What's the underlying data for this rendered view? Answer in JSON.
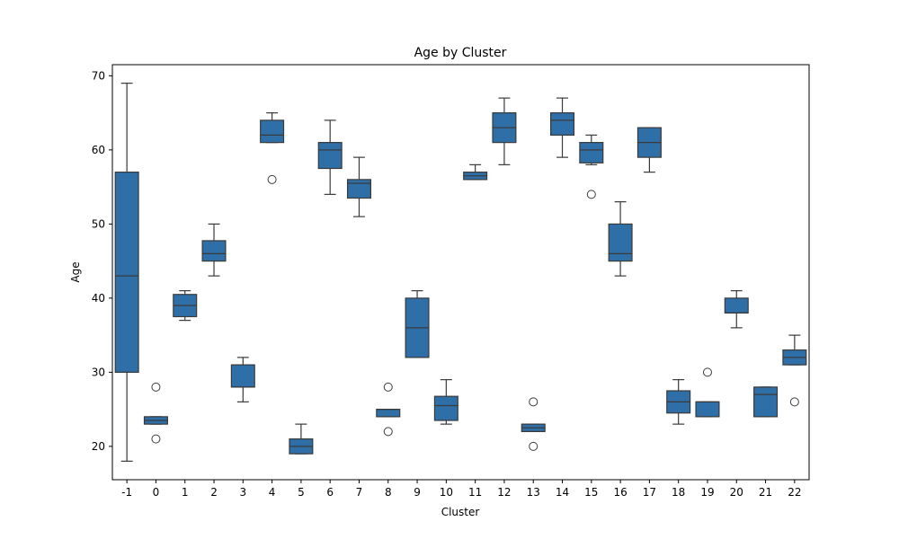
{
  "chart_data": {
    "type": "box",
    "title": "Age by Cluster",
    "xlabel": "Cluster",
    "ylabel": "Age",
    "ylim": [
      15.5,
      71.5
    ],
    "yticks": [
      20,
      30,
      40,
      50,
      60,
      70
    ],
    "grid": false,
    "box_color": "#2f6fa7",
    "line_color": "#3a3a3a",
    "categories": [
      "-1",
      "0",
      "1",
      "2",
      "3",
      "4",
      "5",
      "6",
      "7",
      "8",
      "9",
      "10",
      "11",
      "12",
      "13",
      "14",
      "15",
      "16",
      "17",
      "18",
      "19",
      "20",
      "21",
      "22"
    ],
    "boxes": [
      {
        "whislo": 18,
        "q1": 30,
        "med": 43,
        "q3": 57,
        "whishi": 69,
        "fliers": []
      },
      {
        "whislo": 23,
        "q1": 23,
        "med": 23.5,
        "q3": 24,
        "whishi": 24,
        "fliers": [
          28,
          21
        ]
      },
      {
        "whislo": 37,
        "q1": 37.5,
        "med": 39,
        "q3": 40.5,
        "whishi": 41,
        "fliers": []
      },
      {
        "whislo": 43,
        "q1": 45,
        "med": 46,
        "q3": 47.75,
        "whishi": 50,
        "fliers": []
      },
      {
        "whislo": 26,
        "q1": 28,
        "med": 28,
        "q3": 31,
        "whishi": 32,
        "fliers": []
      },
      {
        "whislo": 61,
        "q1": 61,
        "med": 62,
        "q3": 64,
        "whishi": 65,
        "fliers": [
          56
        ]
      },
      {
        "whislo": 19,
        "q1": 19,
        "med": 20,
        "q3": 21,
        "whishi": 23,
        "fliers": []
      },
      {
        "whislo": 54,
        "q1": 57.5,
        "med": 60,
        "q3": 61,
        "whishi": 64,
        "fliers": []
      },
      {
        "whislo": 51,
        "q1": 53.5,
        "med": 55.5,
        "q3": 56,
        "whishi": 59,
        "fliers": []
      },
      {
        "whislo": 24,
        "q1": 24,
        "med": 25,
        "q3": 25,
        "whishi": 25,
        "fliers": [
          28,
          22
        ]
      },
      {
        "whislo": 32,
        "q1": 32,
        "med": 36,
        "q3": 40,
        "whishi": 41,
        "fliers": []
      },
      {
        "whislo": 23,
        "q1": 23.5,
        "med": 25.5,
        "q3": 26.75,
        "whishi": 29,
        "fliers": []
      },
      {
        "whislo": 56,
        "q1": 56,
        "med": 56.5,
        "q3": 57,
        "whishi": 58,
        "fliers": []
      },
      {
        "whislo": 58,
        "q1": 61,
        "med": 63,
        "q3": 65,
        "whishi": 67,
        "fliers": []
      },
      {
        "whislo": 22,
        "q1": 22,
        "med": 22.5,
        "q3": 23,
        "whishi": 23,
        "fliers": [
          26,
          20
        ]
      },
      {
        "whislo": 59,
        "q1": 62,
        "med": 64,
        "q3": 65,
        "whishi": 67,
        "fliers": []
      },
      {
        "whislo": 58,
        "q1": 58.25,
        "med": 60,
        "q3": 61,
        "whishi": 62,
        "fliers": [
          54
        ]
      },
      {
        "whislo": 43,
        "q1": 45,
        "med": 46,
        "q3": 50,
        "whishi": 53,
        "fliers": []
      },
      {
        "whislo": 57,
        "q1": 59,
        "med": 61,
        "q3": 63,
        "whishi": 63,
        "fliers": []
      },
      {
        "whislo": 23,
        "q1": 24.5,
        "med": 26,
        "q3": 27.5,
        "whishi": 29,
        "fliers": []
      },
      {
        "whislo": 24,
        "q1": 24,
        "med": 26,
        "q3": 26,
        "whishi": 26,
        "fliers": [
          30
        ]
      },
      {
        "whislo": 36,
        "q1": 38,
        "med": 38,
        "q3": 40,
        "whishi": 41,
        "fliers": []
      },
      {
        "whislo": 24,
        "q1": 24,
        "med": 27,
        "q3": 28,
        "whishi": 28,
        "fliers": []
      },
      {
        "whislo": 31,
        "q1": 31,
        "med": 32,
        "q3": 33,
        "whishi": 35,
        "fliers": [
          26
        ]
      }
    ]
  }
}
